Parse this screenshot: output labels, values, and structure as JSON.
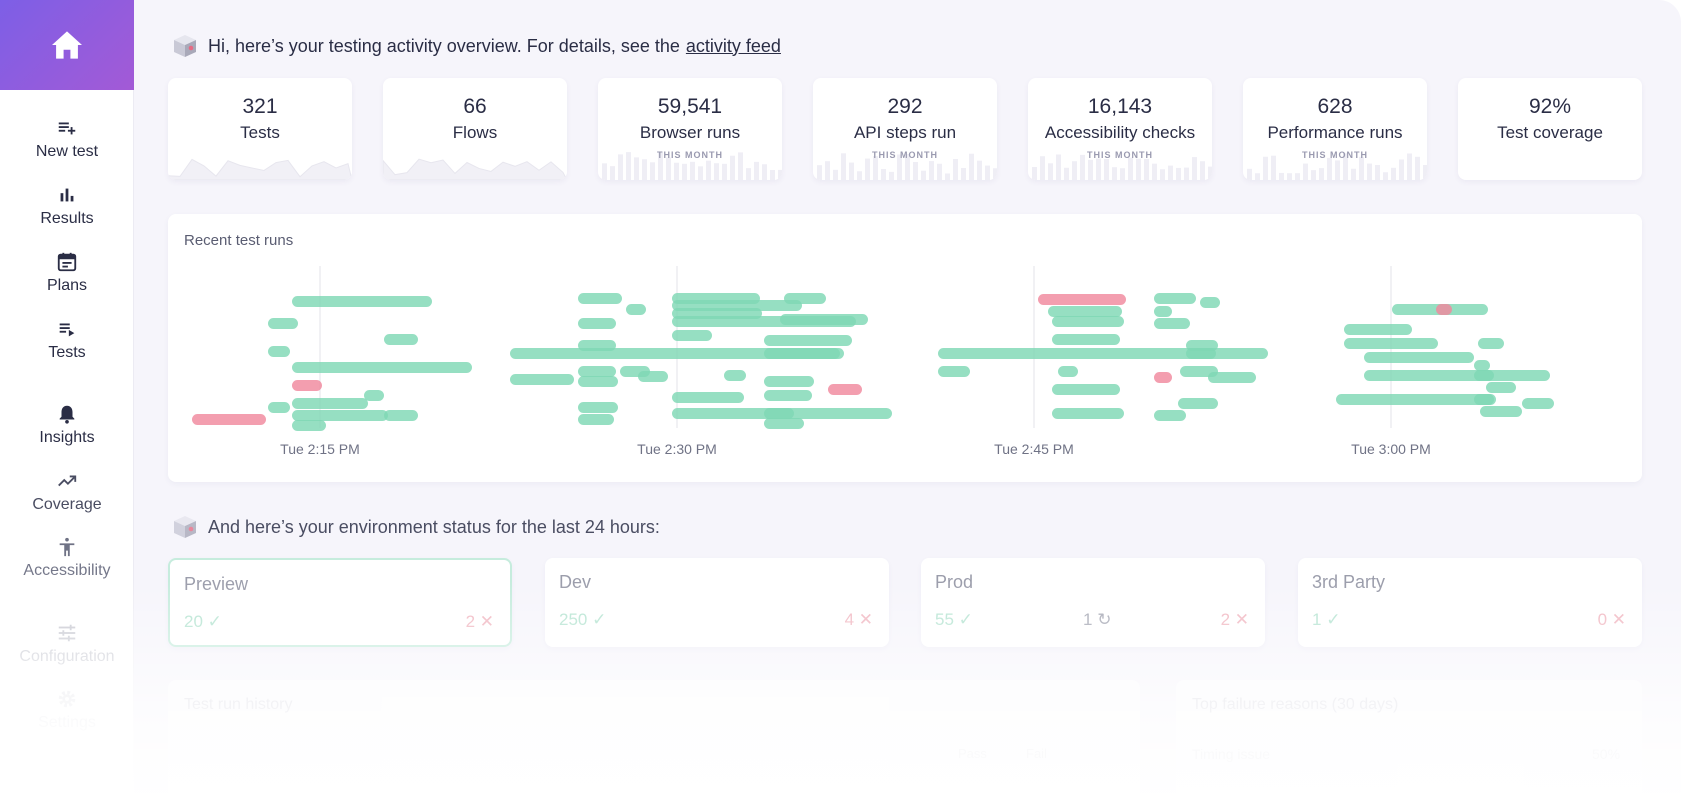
{
  "sidebar": {
    "items": [
      {
        "label": "New test",
        "icon": "playlist-add-icon"
      },
      {
        "label": "Results",
        "icon": "bar-chart-icon"
      },
      {
        "label": "Plans",
        "icon": "calendar-icon"
      },
      {
        "label": "Tests",
        "icon": "playlist-play-icon"
      },
      {
        "label": "Insights",
        "icon": "bell-icon"
      },
      {
        "label": "Coverage",
        "icon": "trending-up-icon"
      },
      {
        "label": "Accessibility",
        "icon": "accessibility-icon"
      },
      {
        "label": "Configuration",
        "icon": "sliders-icon"
      },
      {
        "label": "Settings",
        "icon": "gear-icon"
      }
    ]
  },
  "greeting": {
    "text": "Hi, here’s your testing activity overview. For details, see the",
    "link": "activity feed"
  },
  "stats": [
    {
      "value": "321",
      "label": "Tests",
      "sub": ""
    },
    {
      "value": "66",
      "label": "Flows",
      "sub": ""
    },
    {
      "value": "59,541",
      "label": "Browser runs",
      "sub": "THIS MONTH"
    },
    {
      "value": "292",
      "label": "API steps run",
      "sub": "THIS MONTH"
    },
    {
      "value": "16,143",
      "label": "Accessibility checks",
      "sub": "THIS MONTH"
    },
    {
      "value": "628",
      "label": "Performance runs",
      "sub": "THIS MONTH"
    },
    {
      "value": "92%",
      "label": "Test coverage",
      "sub": ""
    }
  ],
  "recent_runs": {
    "title": "Recent test runs",
    "time_labels": [
      "Tue 2:15 PM",
      "Tue 2:30 PM",
      "Tue 2:45 PM",
      "Tue 3:00 PM"
    ],
    "colors": {
      "pass": "#7fd8b5",
      "fail": "#f0899d"
    }
  },
  "environment": {
    "heading": "And here’s your environment status for the last 24 hours:",
    "envs": [
      {
        "name": "Preview",
        "ok": "20",
        "mid": "",
        "fail": "2"
      },
      {
        "name": "Dev",
        "ok": "250",
        "mid": "",
        "fail": "4"
      },
      {
        "name": "Prod",
        "ok": "55",
        "mid": "1",
        "fail": "2"
      },
      {
        "name": "3rd Party",
        "ok": "1",
        "mid": "",
        "fail": "0"
      }
    ]
  },
  "lower": {
    "history_title": "Test run history",
    "legend_pass": "Pass",
    "legend_fail": "Fail",
    "failures_title": "Top failure reasons (30 days)",
    "failure_item": "Timing issue",
    "failure_pct": "50%"
  }
}
